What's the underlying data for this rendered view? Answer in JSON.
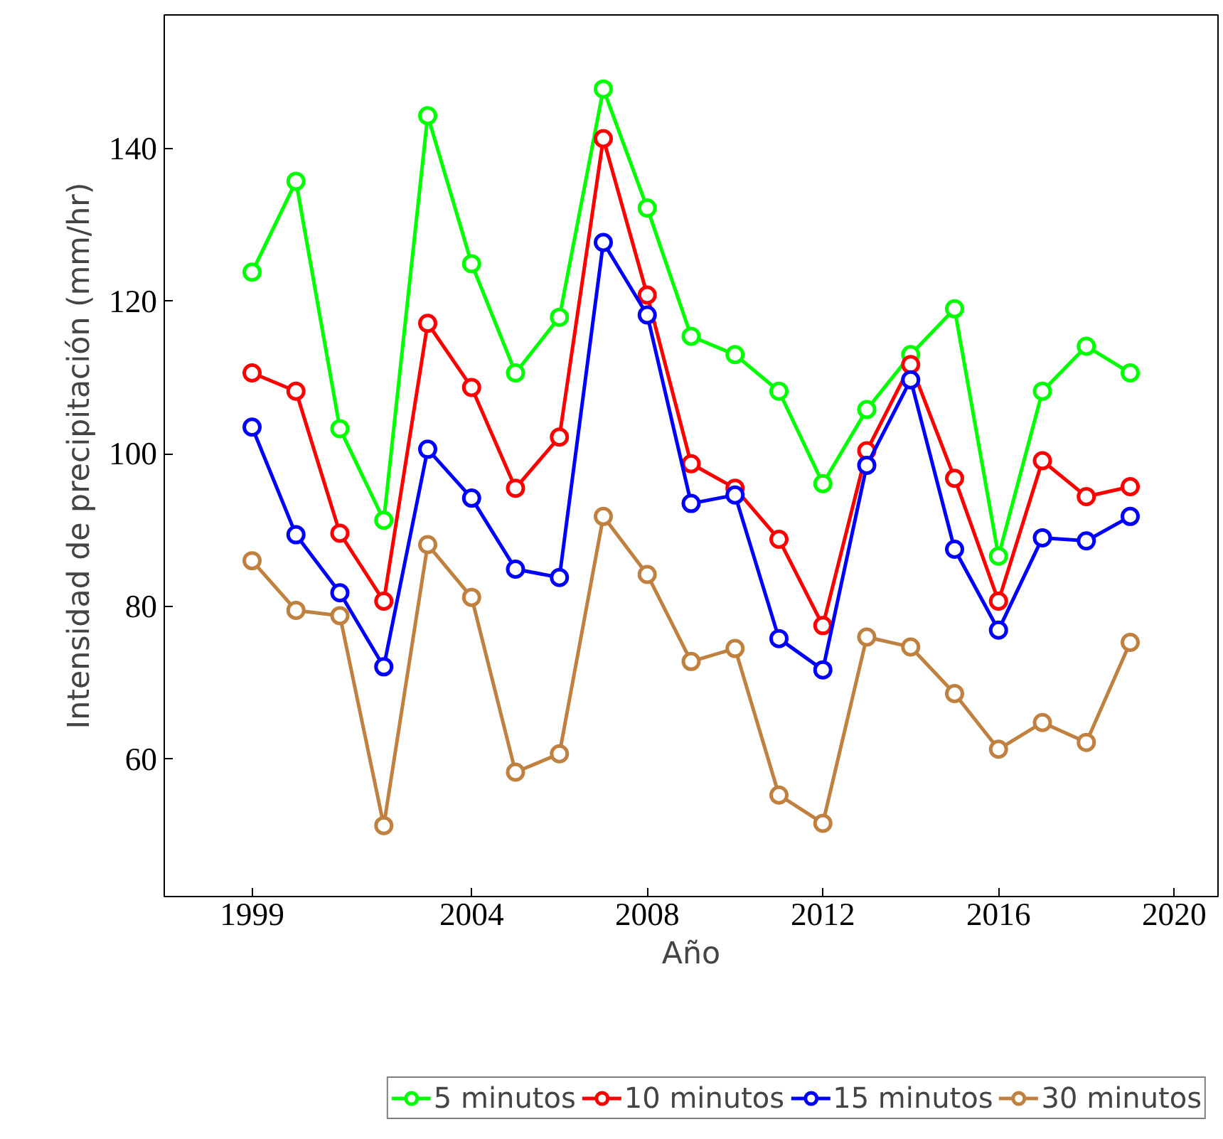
{
  "chart_data": {
    "type": "line",
    "xlabel": "Año",
    "ylabel": "Intensidad de precipitación (mm/hr)",
    "x": [
      1999,
      2000,
      2001,
      2002,
      2003,
      2004,
      2005,
      2006,
      2007,
      2008,
      2009,
      2010,
      2011,
      2012,
      2013,
      2014,
      2015,
      2016,
      2017,
      2018,
      2019
    ],
    "xlim": [
      1997,
      2021
    ],
    "xticks": [
      1999,
      2004,
      2008,
      2012,
      2016,
      2020
    ],
    "ylim": [
      42,
      157.5
    ],
    "yticks": [
      60,
      80,
      100,
      120,
      140
    ],
    "grid": false,
    "legend": "bottom",
    "marker": "circle",
    "line_style": "solid",
    "series": [
      {
        "name": "5 minutos",
        "color": "#00ff00",
        "values": [
          123.8,
          135.7,
          103.3,
          91.3,
          144.3,
          124.9,
          110.6,
          117.9,
          147.8,
          132.2,
          115.4,
          113.0,
          108.2,
          96.1,
          105.8,
          113.0,
          119.0,
          86.6,
          108.2,
          114.1,
          110.6
        ]
      },
      {
        "name": "10 minutos",
        "color": "#ff0000",
        "values": [
          110.6,
          108.2,
          89.6,
          80.7,
          117.1,
          108.7,
          95.5,
          102.2,
          141.3,
          120.8,
          98.7,
          95.5,
          88.8,
          77.5,
          100.4,
          111.7,
          96.8,
          80.7,
          99.1,
          94.4,
          95.7
        ]
      },
      {
        "name": "15 minutos",
        "color": "#0000ff",
        "values": [
          103.5,
          89.4,
          81.8,
          72.1,
          100.6,
          94.2,
          84.9,
          83.8,
          127.7,
          118.2,
          93.5,
          94.6,
          75.8,
          71.7,
          98.5,
          109.7,
          87.5,
          76.9,
          89.0,
          88.6,
          91.8
        ]
      },
      {
        "name": "30 minutos",
        "color": "#bf8040",
        "values": [
          86.0,
          79.5,
          78.8,
          51.3,
          88.1,
          81.2,
          58.3,
          60.7,
          91.8,
          84.2,
          72.8,
          74.5,
          55.3,
          51.6,
          76.0,
          74.7,
          68.6,
          61.3,
          64.8,
          62.2,
          75.3
        ]
      }
    ]
  }
}
